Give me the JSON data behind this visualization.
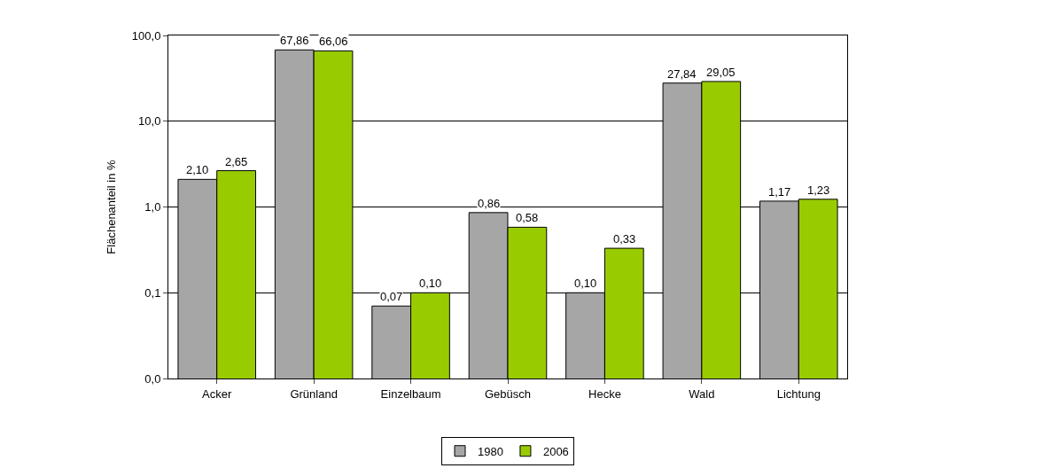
{
  "chart_data": {
    "type": "bar",
    "ylabel": "Flächenanteil in %",
    "categories": [
      "Acker",
      "Grünland",
      "Einzelbaum",
      "Gebüsch",
      "Hecke",
      "Wald",
      "Lichtung"
    ],
    "series": [
      {
        "name": "1980",
        "color": "#a6a6a6",
        "values": [
          2.1,
          67.86,
          0.07,
          0.86,
          0.1,
          27.84,
          1.17
        ],
        "value_labels": [
          "2,10",
          "67,86",
          "0,07",
          "0,86",
          "0,10",
          "27,84",
          "1,17"
        ]
      },
      {
        "name": "2006",
        "color": "#99cc00",
        "values": [
          2.65,
          66.06,
          0.1,
          0.58,
          0.33,
          29.05,
          1.23
        ],
        "value_labels": [
          "2,65",
          "66,06",
          "0,10",
          "0,58",
          "0,33",
          "29,05",
          "1,23"
        ]
      }
    ],
    "log": "y",
    "ylim": [
      0.01,
      100
    ],
    "yticks": [
      {
        "value": 0.01,
        "label": "0,0"
      },
      {
        "value": 0.1,
        "label": "0,1"
      },
      {
        "value": 1,
        "label": "1,0"
      },
      {
        "value": 10,
        "label": "10,0"
      },
      {
        "value": 100,
        "label": "100,0"
      }
    ],
    "grid": "y",
    "legend": "bottom"
  }
}
